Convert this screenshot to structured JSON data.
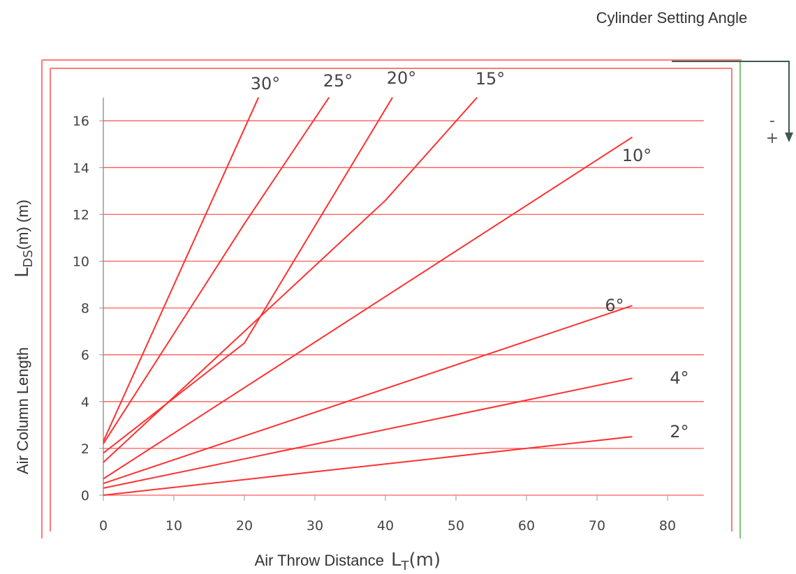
{
  "header": {
    "cylinder_label": "Cylinder Setting Angle",
    "minus": "-",
    "plus": "+"
  },
  "colors": {
    "line": "#ff3030",
    "grid": "#ff5a5a",
    "frame": "#ff7a7a",
    "green": "#7cc47c",
    "arrow": "#3d5a4c",
    "tick_text": "#444444"
  },
  "chart_data": {
    "type": "line",
    "xlabel": "Air Throw Distance",
    "xlabel_symbol": "L",
    "xlabel_sub": "T",
    "xlabel_unit": "(m)",
    "ylabel": "Air Column Length",
    "ylabel_symbol": "L",
    "ylabel_sub": "DS",
    "ylabel_unit": "(m) (m)",
    "xlim": [
      0,
      85
    ],
    "ylim": [
      0,
      17
    ],
    "x_ticks": [
      "0",
      "10",
      "20",
      "30",
      "40",
      "50",
      "60",
      "70",
      "80"
    ],
    "y_ticks": [
      "0",
      "2",
      "4",
      "6",
      "8",
      "10",
      "12",
      "14",
      "16"
    ],
    "grid": "horizontal",
    "series": [
      {
        "name": "30°",
        "points": [
          [
            0,
            2.3
          ],
          [
            22,
            17.0
          ]
        ]
      },
      {
        "name": "25°",
        "points": [
          [
            0,
            2.2
          ],
          [
            10,
            6.9
          ],
          [
            20,
            11.6
          ],
          [
            32,
            17.0
          ]
        ]
      },
      {
        "name": "20°",
        "points": [
          [
            0,
            1.8
          ],
          [
            20,
            6.5
          ],
          [
            41,
            17.0
          ]
        ]
      },
      {
        "name": "15°",
        "points": [
          [
            0,
            1.4
          ],
          [
            40,
            12.6
          ],
          [
            53,
            17.0
          ]
        ]
      },
      {
        "name": "10°",
        "points": [
          [
            0,
            0.7
          ],
          [
            75,
            15.3
          ]
        ]
      },
      {
        "name": "6°",
        "points": [
          [
            0,
            0.5
          ],
          [
            75,
            8.1
          ]
        ]
      },
      {
        "name": "4°",
        "points": [
          [
            0,
            0.3
          ],
          [
            75,
            5.0
          ]
        ]
      },
      {
        "name": "2°",
        "points": [
          [
            0,
            0.0
          ],
          [
            75,
            2.5
          ]
        ]
      }
    ],
    "angle_labels": [
      "30°",
      "25°",
      "20°",
      "15°",
      "10°",
      "6°",
      "4°",
      "2°"
    ]
  }
}
